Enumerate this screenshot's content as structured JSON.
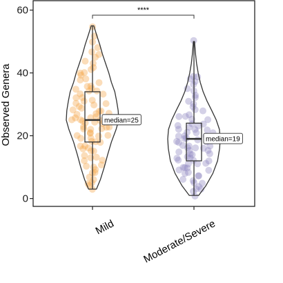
{
  "chart_data": {
    "type": "violin",
    "title": "",
    "xlabel": "",
    "ylabel": "Observed Genera",
    "ylim": [
      -2.5,
      63
    ],
    "yticks": [
      0,
      20,
      40,
      60
    ],
    "grid": false,
    "legend": "none",
    "categories": [
      "Mild",
      "Moderate/Severe"
    ],
    "colors": [
      "#f5a54a",
      "#8f87c0"
    ],
    "groups": [
      {
        "name": "Mild",
        "min": 3,
        "q1": 18,
        "median": 25,
        "q3": 34,
        "max": 55,
        "median_label": "median=25",
        "density": [
          [
            3,
            0.15
          ],
          [
            6,
            0.3
          ],
          [
            10,
            0.45
          ],
          [
            14,
            0.58
          ],
          [
            18,
            0.72
          ],
          [
            22,
            0.9
          ],
          [
            25,
            1.0
          ],
          [
            28,
            0.98
          ],
          [
            31,
            0.92
          ],
          [
            34,
            0.85
          ],
          [
            37,
            0.72
          ],
          [
            40,
            0.62
          ],
          [
            43,
            0.5
          ],
          [
            46,
            0.38
          ],
          [
            49,
            0.28
          ],
          [
            52,
            0.16
          ],
          [
            55,
            0.05
          ]
        ],
        "points": [
          3,
          4,
          5,
          5,
          6,
          7,
          8,
          8,
          9,
          10,
          10,
          11,
          12,
          12,
          13,
          13,
          14,
          15,
          15,
          16,
          16,
          17,
          17,
          18,
          18,
          18,
          19,
          19,
          20,
          20,
          20,
          21,
          21,
          22,
          22,
          22,
          23,
          23,
          23,
          24,
          24,
          24,
          25,
          25,
          25,
          25,
          26,
          26,
          26,
          27,
          27,
          27,
          28,
          28,
          28,
          29,
          29,
          30,
          30,
          30,
          31,
          31,
          32,
          32,
          33,
          33,
          34,
          34,
          35,
          35,
          36,
          36,
          37,
          38,
          38,
          39,
          40,
          40,
          41,
          42,
          43,
          44,
          45,
          46,
          47,
          48,
          50,
          52,
          55
        ]
      },
      {
        "name": "Moderate/Severe",
        "min": 1,
        "q1": 12,
        "median": 19,
        "q3": 24,
        "max": 50,
        "median_label": "median=19",
        "density": [
          [
            1,
            0.18
          ],
          [
            4,
            0.45
          ],
          [
            8,
            0.72
          ],
          [
            12,
            0.9
          ],
          [
            16,
            0.98
          ],
          [
            19,
            1.0
          ],
          [
            22,
            0.97
          ],
          [
            25,
            0.85
          ],
          [
            28,
            0.68
          ],
          [
            31,
            0.5
          ],
          [
            34,
            0.35
          ],
          [
            37,
            0.24
          ],
          [
            40,
            0.16
          ],
          [
            43,
            0.1
          ],
          [
            46,
            0.06
          ],
          [
            50,
            0.02
          ]
        ],
        "points": [
          1,
          2,
          3,
          3,
          4,
          5,
          5,
          6,
          6,
          7,
          7,
          8,
          8,
          9,
          9,
          10,
          10,
          10,
          11,
          11,
          11,
          12,
          12,
          12,
          13,
          13,
          13,
          14,
          14,
          14,
          15,
          15,
          15,
          16,
          16,
          16,
          17,
          17,
          17,
          18,
          18,
          18,
          19,
          19,
          19,
          19,
          20,
          20,
          20,
          21,
          21,
          21,
          22,
          22,
          22,
          23,
          23,
          23,
          24,
          24,
          25,
          25,
          26,
          26,
          27,
          28,
          28,
          29,
          30,
          31,
          32,
          33,
          34,
          35,
          36,
          37,
          38,
          39,
          39,
          50
        ]
      }
    ],
    "annotations": [
      {
        "type": "significance",
        "groups": [
          0,
          1
        ],
        "label": "****"
      }
    ]
  }
}
